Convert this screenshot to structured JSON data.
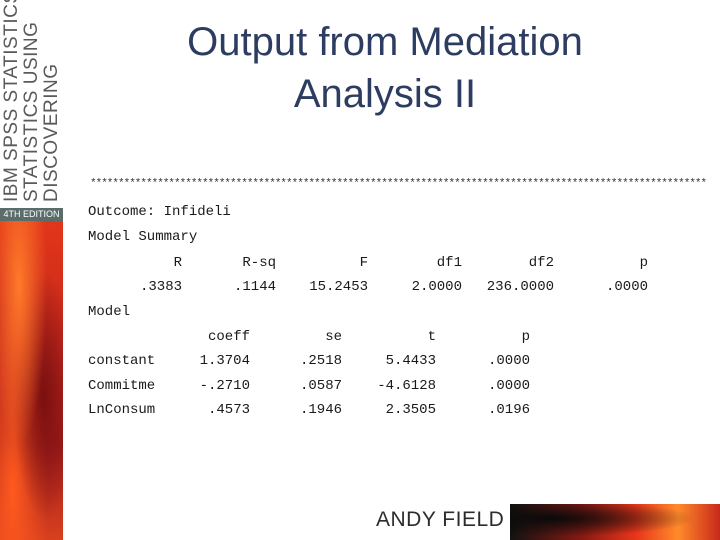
{
  "book_spine": {
    "lines": [
      "DISCOVERING",
      "STATISTICS USING",
      "IBM SPSS STATISTICS"
    ],
    "edition": "4TH EDITION"
  },
  "title": "Output from Mediation Analysis II",
  "output": {
    "stars": "**************************************************************************************************************",
    "outcome_line": "Outcome: Infideli",
    "model_summary_label": "Model Summary",
    "summary_headers": [
      "R",
      "R-sq",
      "F",
      "df1",
      "df2",
      "p"
    ],
    "summary_values": [
      ".3383",
      ".1144",
      "15.2453",
      "2.0000",
      "236.0000",
      ".0000"
    ],
    "model_label": "Model",
    "coef_headers": [
      "coeff",
      "se",
      "t",
      "p"
    ],
    "coef_rows": [
      {
        "name": "constant",
        "values": [
          "1.3704",
          ".2518",
          "5.4433",
          ".0000"
        ]
      },
      {
        "name": "Commitme",
        "values": [
          "-.2710",
          ".0587",
          "-4.6128",
          ".0000"
        ]
      },
      {
        "name": "LnConsum",
        "values": [
          ".4573",
          ".1946",
          "2.3505",
          ".0196"
        ]
      }
    ]
  },
  "footer": {
    "author": "ANDY FIELD"
  }
}
